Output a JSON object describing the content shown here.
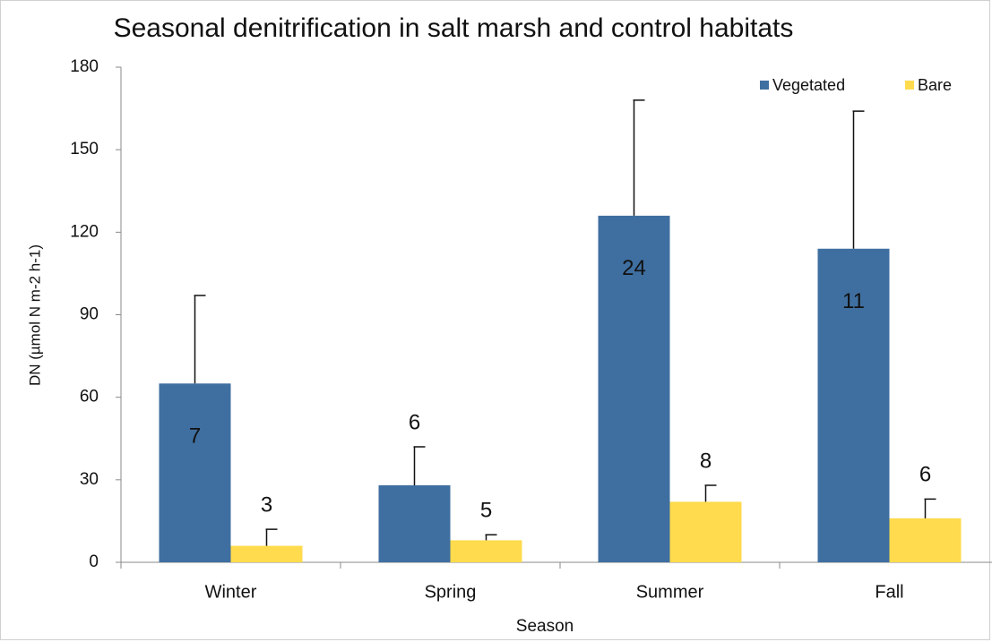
{
  "chart_data": {
    "type": "bar",
    "title": "Seasonal denitrification in salt marsh and control habitats",
    "x_label": "Season",
    "y_label": "DN (µmol N m-2 h-1)",
    "categories": [
      "Winter",
      "Spring",
      "Summer",
      "Fall"
    ],
    "series": [
      {
        "name": "Vegetated",
        "color": "#3f6fa0",
        "values": [
          65,
          28,
          126,
          114
        ],
        "errors": [
          32,
          14,
          42,
          50
        ],
        "annotations": [
          "7",
          "6",
          "24",
          "11"
        ]
      },
      {
        "name": "Bare",
        "color": "#ffdb4d",
        "values": [
          6,
          8,
          22,
          16
        ],
        "errors": [
          6,
          2,
          6,
          7
        ],
        "annotations": [
          "3",
          "5",
          "8",
          "6"
        ]
      }
    ],
    "ylim": [
      0,
      180
    ],
    "yticks": [
      0,
      30,
      60,
      90,
      120,
      150,
      180
    ],
    "grid": false,
    "legend": "top-right"
  }
}
